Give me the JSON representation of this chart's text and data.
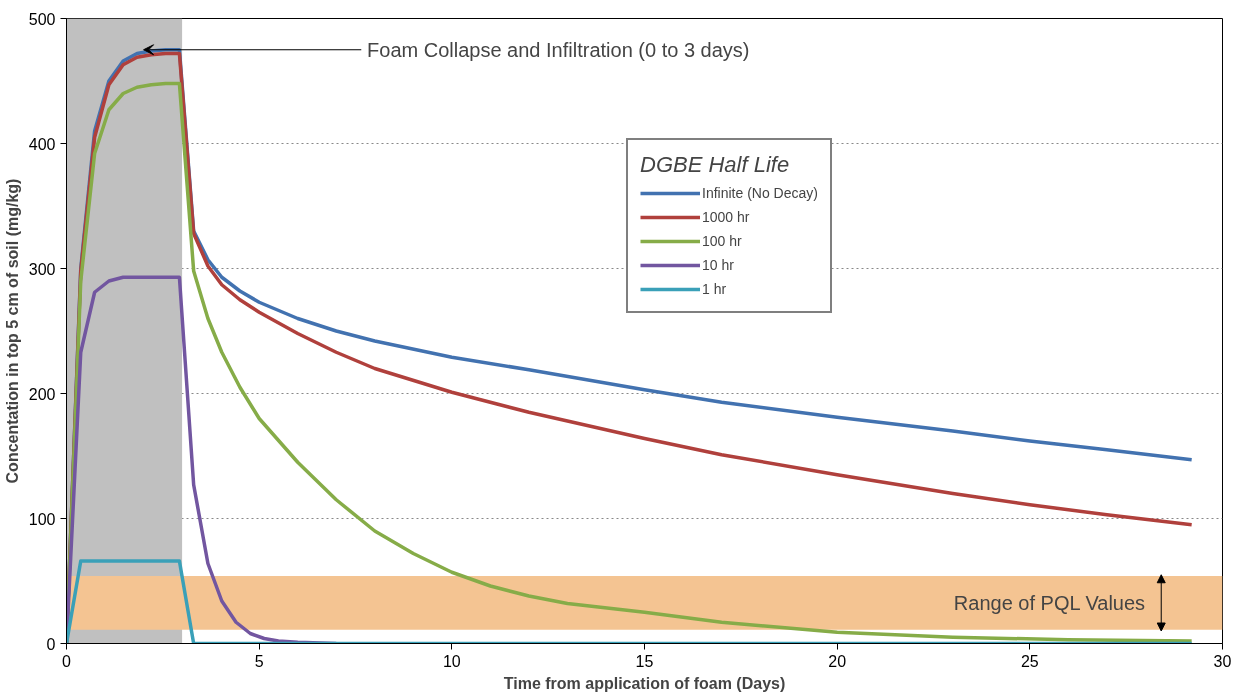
{
  "chart_data": {
    "type": "line",
    "xlabel": "Time from application of foam (Days)",
    "ylabel": "Concentation in top 5 cm of soil (mg/kg)",
    "legend_title": "DGBE Half Life",
    "xlim": [
      0,
      30
    ],
    "xticks": [
      0,
      5,
      10,
      15,
      20,
      25,
      30
    ],
    "ylim": [
      0,
      500
    ],
    "yticks": [
      0,
      100,
      200,
      300,
      400,
      500
    ],
    "grid": "y",
    "legend": "right",
    "marker": "none",
    "line_style": "solid",
    "bands": [
      {
        "axis": "x",
        "from": 0,
        "to": 3,
        "label": "Foam Collapse and Infiltration (0 to 3 days)",
        "color": "#c0c0c0"
      },
      {
        "axis": "y",
        "from": 11,
        "to": 54,
        "label": "Range of PQL Values",
        "color": "#f4c492"
      }
    ],
    "series": [
      {
        "name": "Infinite (No Decay)",
        "color": "#4272b0",
        "x": [
          0,
          0.37,
          0.73,
          1.1,
          1.47,
          1.83,
          2.2,
          2.57,
          2.93,
          3.3,
          3.67,
          4.03,
          4.5,
          5,
          6,
          7,
          8,
          10,
          12,
          15,
          17,
          20,
          23,
          25,
          27,
          29.2
        ],
        "values": [
          0,
          300,
          410,
          450,
          466,
          472,
          474,
          475,
          475,
          330,
          307,
          293,
          282,
          273,
          260,
          250,
          242,
          229,
          219,
          203,
          193,
          181,
          170,
          162,
          155,
          147
        ]
      },
      {
        "name": "1000 hr",
        "color": "#b0403c",
        "x": [
          0,
          0.37,
          0.73,
          1.1,
          1.47,
          1.83,
          2.2,
          2.57,
          2.93,
          3.3,
          3.67,
          4.03,
          4.5,
          5,
          6,
          7,
          8,
          10,
          12,
          15,
          17,
          20,
          23,
          25,
          27,
          29.2
        ],
        "values": [
          0,
          298,
          405,
          447,
          463,
          469,
          471,
          472,
          472,
          328,
          302,
          287,
          275,
          265,
          248,
          233,
          220,
          201,
          185,
          164,
          151,
          135,
          120,
          111,
          103,
          95
        ]
      },
      {
        "name": "100 hr",
        "color": "#86ac48",
        "x": [
          0,
          0.37,
          0.73,
          1.1,
          1.47,
          1.83,
          2.2,
          2.57,
          2.93,
          3.3,
          3.67,
          4.03,
          4.5,
          5,
          6,
          7,
          8,
          9,
          10,
          11,
          12,
          13,
          15,
          17,
          20,
          23,
          26,
          29.2
        ],
        "values": [
          0,
          290,
          392,
          427,
          440,
          445,
          447,
          448,
          448,
          298,
          260,
          233,
          205,
          180,
          145,
          115,
          90,
          72,
          57,
          46,
          38,
          32,
          25,
          17,
          9,
          5,
          3,
          2
        ]
      },
      {
        "name": "10 hr",
        "color": "#7256a0",
        "x": [
          0,
          0.37,
          0.73,
          1.1,
          1.47,
          1.83,
          2.93,
          3.3,
          3.67,
          4.03,
          4.4,
          4.77,
          5.13,
          5.5,
          6,
          7
        ],
        "values": [
          0,
          233,
          281,
          290,
          293,
          293,
          293,
          127,
          64,
          34,
          17,
          8,
          4,
          2,
          1,
          0
        ]
      },
      {
        "name": "1 hr",
        "color": "#3aa0b8",
        "x": [
          0,
          0.37,
          2.93,
          3.3,
          29.2
        ],
        "values": [
          0,
          66,
          66,
          0,
          0
        ]
      }
    ]
  }
}
